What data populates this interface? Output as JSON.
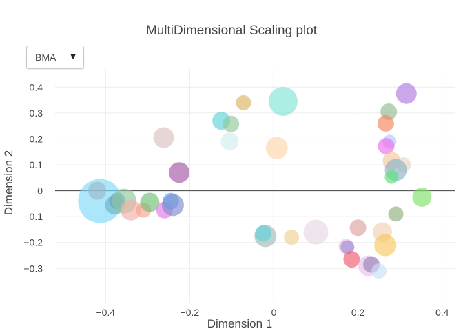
{
  "dropdown": {
    "selected": "BMA",
    "caret": "▼"
  },
  "chart_data": {
    "type": "scatter",
    "title": "MultiDimensional Scaling plot",
    "xlabel": "Dimension 1",
    "ylabel": "Dimension 2",
    "xlim": [
      -0.52,
      0.43
    ],
    "ylim": [
      -0.435,
      0.47
    ],
    "xticks": [
      -0.4,
      -0.2,
      0,
      0.2,
      0.4
    ],
    "yticks": [
      -0.3,
      -0.2,
      -0.1,
      0,
      0.1,
      0.2,
      0.3,
      0.4
    ],
    "xtick_labels": [
      "−0.4",
      "−0.2",
      "0",
      "0.2",
      "0.4"
    ],
    "ytick_labels": [
      "−0.3",
      "−0.2",
      "−0.1",
      "0",
      "0.1",
      "0.2",
      "0.3",
      "0.4"
    ],
    "grid": true,
    "zero_lines": true,
    "points": [
      {
        "x": 0.022,
        "y": 0.345,
        "r": 21,
        "color": "#7fe3d6"
      },
      {
        "x": 0.315,
        "y": 0.375,
        "r": 15,
        "color": "#b07ae0"
      },
      {
        "x": 0.273,
        "y": 0.305,
        "r": 12,
        "color": "#8fbc8f"
      },
      {
        "x": 0.266,
        "y": 0.26,
        "r": 12,
        "color": "#f6845a"
      },
      {
        "x": -0.072,
        "y": 0.34,
        "r": 11,
        "color": "#deb464"
      },
      {
        "x": -0.125,
        "y": 0.27,
        "r": 13,
        "color": "#5dd2d6"
      },
      {
        "x": -0.102,
        "y": 0.258,
        "r": 12,
        "color": "#8fc89a"
      },
      {
        "x": -0.105,
        "y": 0.19,
        "r": 13,
        "color": "#cfeeee"
      },
      {
        "x": -0.262,
        "y": 0.205,
        "r": 15,
        "color": "#dcbfbf"
      },
      {
        "x": 0.007,
        "y": 0.165,
        "r": 16,
        "color": "#fcd4aa"
      },
      {
        "x": -0.225,
        "y": 0.07,
        "r": 15,
        "color": "#a257a8"
      },
      {
        "x": 0.275,
        "y": 0.19,
        "r": 10,
        "color": "#b3c6f5"
      },
      {
        "x": 0.267,
        "y": 0.172,
        "r": 12,
        "color": "#ee6cf0"
      },
      {
        "x": 0.28,
        "y": 0.115,
        "r": 13,
        "color": "#f3c8a0"
      },
      {
        "x": 0.308,
        "y": 0.1,
        "r": 11,
        "color": "#e8d5c0"
      },
      {
        "x": 0.29,
        "y": 0.08,
        "r": 16,
        "color": "#8ab3c8"
      },
      {
        "x": 0.28,
        "y": 0.053,
        "r": 10,
        "color": "#5de07a"
      },
      {
        "x": 0.352,
        "y": -0.025,
        "r": 14,
        "color": "#7fe06a"
      },
      {
        "x": 0.29,
        "y": -0.09,
        "r": 11,
        "color": "#8fb07a"
      },
      {
        "x": -0.42,
        "y": 0,
        "r": 13,
        "color": "#d17a7a"
      },
      {
        "x": -0.413,
        "y": -0.04,
        "r": 32,
        "color": "#7fd8f7"
      },
      {
        "x": -0.378,
        "y": -0.055,
        "r": 14,
        "color": "#6fb2c4"
      },
      {
        "x": -0.372,
        "y": -0.04,
        "r": 12,
        "color": "#6aa0d0"
      },
      {
        "x": -0.356,
        "y": -0.04,
        "r": 18,
        "color": "#8fc89a"
      },
      {
        "x": -0.34,
        "y": -0.075,
        "r": 15,
        "color": "#f5b0a8"
      },
      {
        "x": -0.31,
        "y": -0.075,
        "r": 11,
        "color": "#f7a58a"
      },
      {
        "x": -0.295,
        "y": -0.045,
        "r": 14,
        "color": "#6fc073"
      },
      {
        "x": -0.26,
        "y": -0.075,
        "r": 12,
        "color": "#e07ae8"
      },
      {
        "x": -0.245,
        "y": -0.04,
        "r": 12,
        "color": "#5ab0f0"
      },
      {
        "x": -0.24,
        "y": -0.055,
        "r": 16,
        "color": "#7f8ad0"
      },
      {
        "x": -0.02,
        "y": -0.175,
        "r": 16,
        "color": "#a5b8b8"
      },
      {
        "x": -0.025,
        "y": -0.165,
        "r": 12,
        "color": "#5dd2d6"
      },
      {
        "x": 0.042,
        "y": -0.18,
        "r": 11,
        "color": "#f0d090"
      },
      {
        "x": 0.1,
        "y": -0.16,
        "r": 18,
        "color": "#e8d5e5"
      },
      {
        "x": 0.2,
        "y": -0.143,
        "r": 12,
        "color": "#dca0a0"
      },
      {
        "x": 0.258,
        "y": -0.16,
        "r": 14,
        "color": "#f3d0b0"
      },
      {
        "x": 0.265,
        "y": -0.21,
        "r": 16,
        "color": "#f7c860"
      },
      {
        "x": 0.172,
        "y": -0.215,
        "r": 11,
        "color": "#f0c0e0"
      },
      {
        "x": 0.175,
        "y": -0.218,
        "r": 10,
        "color": "#9a8ad8"
      },
      {
        "x": 0.185,
        "y": -0.265,
        "r": 12,
        "color": "#f05a6a"
      },
      {
        "x": 0.225,
        "y": -0.29,
        "r": 15,
        "color": "#e8c0e8"
      },
      {
        "x": 0.232,
        "y": -0.285,
        "r": 12,
        "color": "#9a82b8"
      },
      {
        "x": 0.25,
        "y": -0.31,
        "r": 11,
        "color": "#c8e0f8"
      }
    ]
  }
}
